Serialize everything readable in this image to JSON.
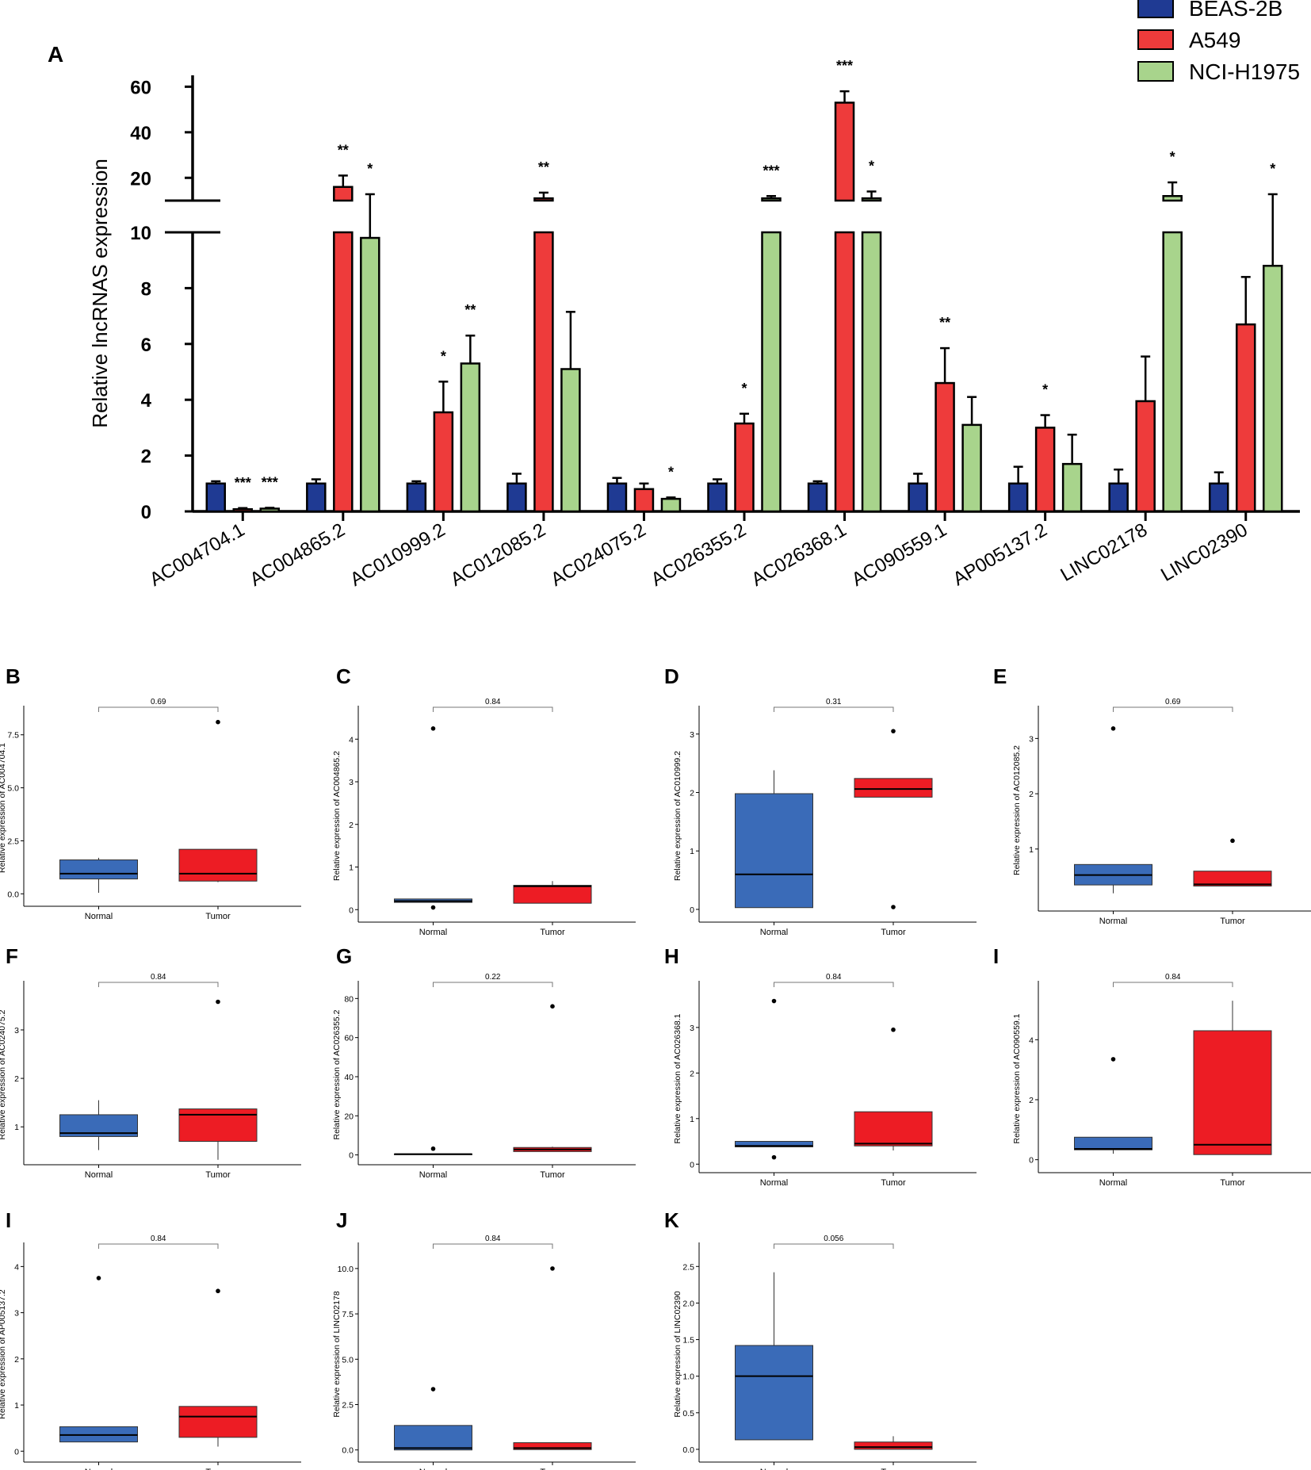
{
  "figure": {
    "panel_a": {
      "letter": "A",
      "ylabel": "Relative lncRNAS expression",
      "legend": [
        {
          "name": "BEAS-2B",
          "color": "#1f3a93"
        },
        {
          "name": "A549",
          "color": "#ee3b3b"
        },
        {
          "name": "NCI-H1975",
          "color": "#a8d48c"
        }
      ]
    }
  },
  "chart_data": [
    {
      "id": "A",
      "type": "bar",
      "title": "",
      "xlabel": "",
      "ylabel": "Relative lncRNAS expression",
      "broken_axis": {
        "lower_range": [
          0,
          10
        ],
        "upper_range": [
          10,
          65
        ]
      },
      "lower_ticks": [
        0,
        2,
        4,
        6,
        8,
        10
      ],
      "upper_ticks": [
        20,
        40,
        60
      ],
      "categories": [
        "AC004704.1",
        "AC004865.2",
        "AC010999.2",
        "AC012085.2",
        "AC024075.2",
        "AC026355.2",
        "AC026368.1",
        "AC090559.1",
        "AP005137.2",
        "LINC02178",
        "LINC02390"
      ],
      "series": [
        {
          "name": "BEAS-2B",
          "color": "#1f3a93",
          "values": [
            1.0,
            1.0,
            1.0,
            1.0,
            1.0,
            1.0,
            1.0,
            1.0,
            1.0,
            1.0,
            1.0
          ],
          "errors": [
            0.08,
            0.15,
            0.08,
            0.35,
            0.2,
            0.15,
            0.08,
            0.35,
            0.6,
            0.5,
            0.4
          ],
          "significance": [
            "",
            "",
            "",
            "",
            "",
            "",
            "",
            "",
            "",
            "",
            ""
          ]
        },
        {
          "name": "A549",
          "color": "#ee3b3b",
          "values": [
            0.08,
            16,
            3.55,
            11,
            0.8,
            3.15,
            53,
            4.6,
            3.0,
            3.95,
            6.7
          ],
          "errors": [
            0.04,
            5,
            1.1,
            2.5,
            0.2,
            0.35,
            5,
            1.25,
            0.45,
            1.6,
            1.7
          ],
          "significance": [
            "***",
            "**",
            "*",
            "**",
            "",
            "*",
            "***",
            "**",
            "*",
            "",
            ""
          ]
        },
        {
          "name": "NCI-H1975",
          "color": "#a8d48c",
          "values": [
            0.1,
            9.8,
            5.3,
            5.1,
            0.45,
            11,
            11,
            3.1,
            1.7,
            12,
            8.8
          ],
          "errors": [
            0.03,
            3,
            1.0,
            2.05,
            0.05,
            1,
            3,
            1.0,
            1.05,
            6,
            4
          ],
          "significance": [
            "***",
            "*",
            "**",
            "",
            "*",
            "***",
            "*",
            "",
            "",
            "*",
            "*"
          ]
        }
      ]
    },
    {
      "id": "B",
      "type": "box",
      "ylabel": "Relative expression of AC004704.1",
      "categories": [
        "Normal",
        "Tumor"
      ],
      "pvalue": "0.69",
      "yticks": [
        0.0,
        2.5,
        5.0,
        7.5
      ],
      "yticklabels": [
        "0.0",
        "2.5",
        "5.0",
        "7.5"
      ],
      "ylim": [
        -0.4,
        8.5
      ],
      "groups": [
        {
          "q1": 0.7,
          "median": 0.95,
          "q3": 1.6,
          "wlo": 0.05,
          "whi": 1.7,
          "outliers": []
        },
        {
          "q1": 0.6,
          "median": 0.95,
          "q3": 2.1,
          "wlo": 0.55,
          "whi": 2.1,
          "outliers": [
            8.1
          ]
        }
      ]
    },
    {
      "id": "C",
      "type": "box",
      "ylabel": "Relative expression of AC004865.2",
      "categories": [
        "Normal",
        "Tumor"
      ],
      "pvalue": "0.84",
      "yticks": [
        0,
        1,
        2,
        3,
        4
      ],
      "yticklabels": [
        "0",
        "1",
        "2",
        "3",
        "4"
      ],
      "ylim": [
        -0.2,
        4.6
      ],
      "groups": [
        {
          "q1": 0.17,
          "median": 0.2,
          "q3": 0.25,
          "wlo": 0.17,
          "whi": 0.25,
          "outliers": [
            0.05,
            4.25
          ]
        },
        {
          "q1": 0.15,
          "median": 0.55,
          "q3": 0.57,
          "wlo": 0.15,
          "whi": 0.67,
          "outliers": []
        }
      ]
    },
    {
      "id": "D",
      "type": "box",
      "ylabel": "Relative expression of AC010999.2",
      "categories": [
        "Normal",
        "Tumor"
      ],
      "pvalue": "0.31",
      "yticks": [
        0,
        1,
        2,
        3
      ],
      "yticklabels": [
        "0",
        "1",
        "2",
        "3"
      ],
      "ylim": [
        -0.15,
        3.35
      ],
      "groups": [
        {
          "q1": 0.03,
          "median": 0.6,
          "q3": 1.98,
          "wlo": 0.03,
          "whi": 2.38,
          "outliers": []
        },
        {
          "q1": 1.92,
          "median": 2.06,
          "q3": 2.24,
          "wlo": 1.92,
          "whi": 2.24,
          "outliers": [
            0.04,
            3.05
          ]
        }
      ]
    },
    {
      "id": "E",
      "type": "box",
      "ylabel": "Relative expression of AC012085.2",
      "categories": [
        "Normal",
        "Tumor"
      ],
      "pvalue": "0.69",
      "yticks": [
        1,
        2,
        3
      ],
      "yticklabels": [
        "1",
        "2",
        "3"
      ],
      "ylim": [
        -0.05,
        3.45
      ],
      "groups": [
        {
          "q1": 0.35,
          "median": 0.53,
          "q3": 0.72,
          "wlo": 0.2,
          "whi": 0.72,
          "outliers": [
            3.18
          ]
        },
        {
          "q1": 0.33,
          "median": 0.36,
          "q3": 0.6,
          "wlo": 0.33,
          "whi": 0.6,
          "outliers": [
            1.15
          ]
        }
      ]
    },
    {
      "id": "F",
      "type": "box",
      "ylabel": "Relative expression of AC024075.2",
      "categories": [
        "Normal",
        "Tumor"
      ],
      "pvalue": "0.84",
      "yticks": [
        1,
        2,
        3
      ],
      "yticklabels": [
        "1",
        "2",
        "3"
      ],
      "ylim": [
        0.3,
        3.85
      ],
      "groups": [
        {
          "q1": 0.8,
          "median": 0.87,
          "q3": 1.25,
          "wlo": 0.52,
          "whi": 1.55,
          "outliers": []
        },
        {
          "q1": 0.7,
          "median": 1.25,
          "q3": 1.37,
          "wlo": 0.32,
          "whi": 1.37,
          "outliers": [
            3.58
          ]
        }
      ]
    },
    {
      "id": "G",
      "type": "box",
      "ylabel": "Relative expression of AC026355.2",
      "categories": [
        "Normal",
        "Tumor"
      ],
      "pvalue": "0.22",
      "yticks": [
        0,
        20,
        40,
        60,
        80
      ],
      "yticklabels": [
        "0",
        "20",
        "40",
        "60",
        "80"
      ],
      "ylim": [
        -3,
        85
      ],
      "groups": [
        {
          "q1": 0.2,
          "median": 0.4,
          "q3": 0.5,
          "wlo": 0.2,
          "whi": 0.5,
          "outliers": [
            3.2
          ]
        },
        {
          "q1": 1.7,
          "median": 2.8,
          "q3": 3.8,
          "wlo": 1.7,
          "whi": 4.2,
          "outliers": [
            76
          ]
        }
      ]
    },
    {
      "id": "H",
      "type": "box",
      "ylabel": "Relative expression of AC026368.1",
      "categories": [
        "Normal",
        "Tumor"
      ],
      "pvalue": "0.84",
      "yticks": [
        0,
        1,
        2,
        3
      ],
      "yticklabels": [
        "0",
        "1",
        "2",
        "3"
      ],
      "ylim": [
        -0.1,
        3.85
      ],
      "groups": [
        {
          "q1": 0.38,
          "median": 0.4,
          "q3": 0.5,
          "wlo": 0.38,
          "whi": 0.5,
          "outliers": [
            0.15,
            3.58
          ]
        },
        {
          "q1": 0.4,
          "median": 0.45,
          "q3": 1.15,
          "wlo": 0.3,
          "whi": 1.15,
          "outliers": [
            2.95
          ]
        }
      ]
    },
    {
      "id": "I",
      "type": "box",
      "ylabel": "Relative expression of AC090559.1",
      "categories": [
        "Normal",
        "Tumor"
      ],
      "pvalue": "0.84",
      "yticks": [
        0,
        2,
        4
      ],
      "yticklabels": [
        "0",
        "2",
        "4"
      ],
      "ylim": [
        -0.3,
        5.7
      ],
      "groups": [
        {
          "q1": 0.33,
          "median": 0.36,
          "q3": 0.75,
          "wlo": 0.2,
          "whi": 0.75,
          "outliers": [
            3.35
          ]
        },
        {
          "q1": 0.17,
          "median": 0.5,
          "q3": 4.3,
          "wlo": 0.17,
          "whi": 5.3,
          "outliers": []
        }
      ]
    },
    {
      "id": "I",
      "type": "box",
      "ylabel": "Relative expression of AP005137.2",
      "categories": [
        "Normal",
        "Tumor"
      ],
      "pvalue": "0.84",
      "yticks": [
        0,
        1,
        2,
        3,
        4
      ],
      "yticklabels": [
        "0",
        "1",
        "2",
        "3",
        "4"
      ],
      "ylim": [
        -0.15,
        4.35
      ],
      "groups": [
        {
          "q1": 0.2,
          "median": 0.35,
          "q3": 0.53,
          "wlo": 0.2,
          "whi": 0.53,
          "outliers": [
            3.75
          ]
        },
        {
          "q1": 0.3,
          "median": 0.75,
          "q3": 0.97,
          "wlo": 0.1,
          "whi": 0.97,
          "outliers": [
            3.47
          ]
        }
      ]
    },
    {
      "id": "J",
      "type": "box",
      "ylabel": "Relative expression of LINC02178",
      "categories": [
        "Normal",
        "Tumor"
      ],
      "pvalue": "0.84",
      "yticks": [
        0.0,
        2.5,
        5.0,
        7.5,
        10.0
      ],
      "yticklabels": [
        "0.0",
        "2.5",
        "5.0",
        "7.5",
        "10.0"
      ],
      "ylim": [
        -0.45,
        11.0
      ],
      "groups": [
        {
          "q1": 0.0,
          "median": 0.1,
          "q3": 1.35,
          "wlo": 0.0,
          "whi": 1.35,
          "outliers": [
            3.35
          ]
        },
        {
          "q1": 0.02,
          "median": 0.1,
          "q3": 0.4,
          "wlo": 0.02,
          "whi": 0.4,
          "outliers": [
            10.0
          ]
        }
      ]
    },
    {
      "id": "K",
      "type": "box",
      "ylabel": "Relative expression of LINC02390",
      "categories": [
        "Normal",
        "Tumor"
      ],
      "pvalue": "0.056",
      "yticks": [
        0.0,
        0.5,
        1.0,
        1.5,
        2.0,
        2.5
      ],
      "yticklabels": [
        "0.0",
        "0.5",
        "1.0",
        "1.5",
        "2.0",
        "2.5"
      ],
      "ylim": [
        -0.12,
        2.72
      ],
      "groups": [
        {
          "q1": 0.13,
          "median": 1.0,
          "q3": 1.42,
          "wlo": 0.13,
          "whi": 2.42,
          "outliers": []
        },
        {
          "q1": 0.0,
          "median": 0.03,
          "q3": 0.1,
          "wlo": 0.0,
          "whi": 0.18,
          "outliers": []
        }
      ]
    }
  ]
}
